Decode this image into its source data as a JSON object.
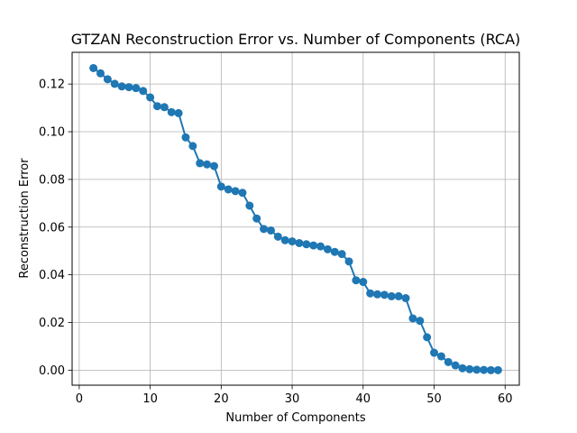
{
  "chart_data": {
    "type": "line",
    "title": "GTZAN Reconstruction Error vs. Number of Components (RCA)",
    "xlabel": "Number of Components",
    "ylabel": "Reconstruction Error",
    "xlim": [
      -1,
      62
    ],
    "ylim": [
      -0.0063,
      0.1333
    ],
    "xticks": [
      0,
      10,
      20,
      30,
      40,
      50,
      60
    ],
    "yticks": [
      0.0,
      0.02,
      0.04,
      0.06,
      0.08,
      0.1,
      0.12
    ],
    "xtick_labels": [
      "0",
      "10",
      "20",
      "30",
      "40",
      "50",
      "60"
    ],
    "ytick_labels": [
      "0.00",
      "0.02",
      "0.04",
      "0.06",
      "0.08",
      "0.10",
      "0.12"
    ],
    "grid": true,
    "marker": "circle",
    "series_color": "#1f77b4",
    "x": [
      2,
      3,
      4,
      5,
      6,
      7,
      8,
      9,
      10,
      11,
      12,
      13,
      14,
      15,
      16,
      17,
      18,
      19,
      20,
      21,
      22,
      23,
      24,
      25,
      26,
      27,
      28,
      29,
      30,
      31,
      32,
      33,
      34,
      35,
      36,
      37,
      38,
      39,
      40,
      41,
      42,
      43,
      44,
      45,
      46,
      47,
      48,
      49,
      50,
      51,
      52,
      53,
      54,
      55,
      56,
      57,
      58,
      59
    ],
    "y": [
      0.1267,
      0.1245,
      0.122,
      0.1201,
      0.119,
      0.1187,
      0.1183,
      0.1171,
      0.1144,
      0.1107,
      0.1103,
      0.1082,
      0.1078,
      0.0976,
      0.094,
      0.0868,
      0.0863,
      0.0856,
      0.077,
      0.0758,
      0.0751,
      0.0744,
      0.069,
      0.0636,
      0.0592,
      0.0586,
      0.056,
      0.0545,
      0.054,
      0.0533,
      0.0528,
      0.0523,
      0.0519,
      0.0507,
      0.0496,
      0.0487,
      0.0456,
      0.0377,
      0.037,
      0.0322,
      0.0318,
      0.0316,
      0.031,
      0.031,
      0.0302,
      0.0217,
      0.0207,
      0.0138,
      0.0073,
      0.0058,
      0.0034,
      0.002,
      0.0008,
      0.0004,
      0.0002,
      0.0001,
      0.0,
      0.0
    ]
  }
}
